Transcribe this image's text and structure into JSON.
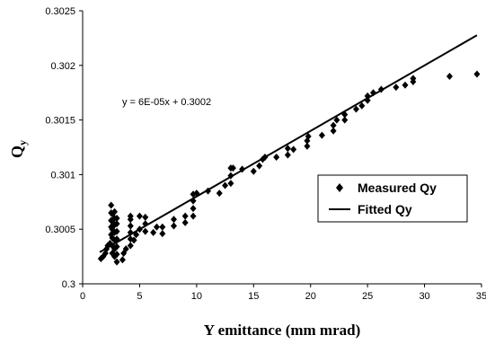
{
  "chart_data": {
    "type": "scatter",
    "xlabel": "Y emittance (mm mrad)",
    "ylabel_main": "Q",
    "ylabel_sub": "y",
    "xlim": [
      0,
      35
    ],
    "ylim": [
      0.3,
      0.3025
    ],
    "x_ticks": [
      "0",
      "5",
      "10",
      "15",
      "20",
      "25",
      "30",
      "35"
    ],
    "y_ticks": [
      "0.3",
      "0.3005",
      "0.301",
      "0.3015",
      "0.302",
      "0.3025"
    ],
    "grid": false,
    "legend_position": "right",
    "annotation": "y = 6E-05x + 0.3002",
    "colors": {
      "marker": "#000000",
      "line": "#000000",
      "axis": "#000000"
    },
    "series": [
      {
        "name": "Measured Qy",
        "marker": "diamond",
        "points": [
          [
            1.6,
            0.30023
          ],
          [
            1.8,
            0.30025
          ],
          [
            2.0,
            0.30028
          ],
          [
            2.1,
            0.30032
          ],
          [
            2.2,
            0.30035
          ],
          [
            2.4,
            0.30037
          ],
          [
            2.5,
            0.30045
          ],
          [
            2.5,
            0.30052
          ],
          [
            2.5,
            0.30058
          ],
          [
            2.5,
            0.30065
          ],
          [
            2.5,
            0.30072
          ],
          [
            2.6,
            0.30028
          ],
          [
            2.6,
            0.30035
          ],
          [
            2.6,
            0.30042
          ],
          [
            2.6,
            0.3005
          ],
          [
            2.6,
            0.30057
          ],
          [
            2.6,
            0.30064
          ],
          [
            2.8,
            0.30025
          ],
          [
            2.8,
            0.30032
          ],
          [
            2.8,
            0.3004
          ],
          [
            2.8,
            0.30047
          ],
          [
            2.8,
            0.30054
          ],
          [
            2.8,
            0.3006
          ],
          [
            2.8,
            0.30066
          ],
          [
            3.0,
            0.3002
          ],
          [
            3.0,
            0.30027
          ],
          [
            3.0,
            0.30034
          ],
          [
            3.0,
            0.30041
          ],
          [
            3.0,
            0.30048
          ],
          [
            3.0,
            0.30055
          ],
          [
            3.0,
            0.3006
          ],
          [
            3.5,
            0.30022
          ],
          [
            3.6,
            0.30028
          ],
          [
            3.8,
            0.30032
          ],
          [
            4.2,
            0.30035
          ],
          [
            4.2,
            0.30041
          ],
          [
            4.2,
            0.30047
          ],
          [
            4.2,
            0.30053
          ],
          [
            4.2,
            0.30059
          ],
          [
            4.2,
            0.30062
          ],
          [
            4.5,
            0.3004
          ],
          [
            4.7,
            0.30045
          ],
          [
            5.0,
            0.3005
          ],
          [
            5.0,
            0.30062
          ],
          [
            5.5,
            0.30048
          ],
          [
            5.5,
            0.30055
          ],
          [
            5.5,
            0.30061
          ],
          [
            6.2,
            0.30047
          ],
          [
            6.5,
            0.30052
          ],
          [
            7.0,
            0.30046
          ],
          [
            7.0,
            0.30052
          ],
          [
            8.0,
            0.30053
          ],
          [
            8.0,
            0.30059
          ],
          [
            9.0,
            0.30056
          ],
          [
            9.0,
            0.30062
          ],
          [
            9.7,
            0.30062
          ],
          [
            9.7,
            0.30069
          ],
          [
            9.7,
            0.30076
          ],
          [
            9.7,
            0.30082
          ],
          [
            10.0,
            0.30083
          ],
          [
            11.0,
            0.30085
          ],
          [
            12.0,
            0.30083
          ],
          [
            12.5,
            0.3009
          ],
          [
            13.0,
            0.30092
          ],
          [
            13.0,
            0.30099
          ],
          [
            13.0,
            0.30106
          ],
          [
            13.2,
            0.30106
          ],
          [
            14.0,
            0.30105
          ],
          [
            15.0,
            0.30103
          ],
          [
            15.5,
            0.30108
          ],
          [
            15.8,
            0.30114
          ],
          [
            16.0,
            0.30116
          ],
          [
            17.0,
            0.30116
          ],
          [
            18.0,
            0.30118
          ],
          [
            18.0,
            0.30124
          ],
          [
            18.5,
            0.30123
          ],
          [
            19.7,
            0.30126
          ],
          [
            19.7,
            0.30131
          ],
          [
            19.8,
            0.30135
          ],
          [
            21.0,
            0.30136
          ],
          [
            22.0,
            0.3014
          ],
          [
            22.0,
            0.30145
          ],
          [
            22.3,
            0.3015
          ],
          [
            23.0,
            0.3015
          ],
          [
            23.0,
            0.30155
          ],
          [
            24.0,
            0.3016
          ],
          [
            24.5,
            0.30163
          ],
          [
            25.0,
            0.30168
          ],
          [
            25.0,
            0.30172
          ],
          [
            25.5,
            0.30175
          ],
          [
            26.2,
            0.30178
          ],
          [
            27.5,
            0.3018
          ],
          [
            28.3,
            0.30182
          ],
          [
            29.0,
            0.30185
          ],
          [
            29.0,
            0.30188
          ],
          [
            32.2,
            0.3019
          ],
          [
            34.6,
            0.30192
          ]
        ]
      },
      {
        "name": "Fitted Qy",
        "style": "line",
        "slope": 6e-05,
        "intercept": 0.3002,
        "x_range": [
          1.5,
          34.6
        ]
      }
    ]
  }
}
